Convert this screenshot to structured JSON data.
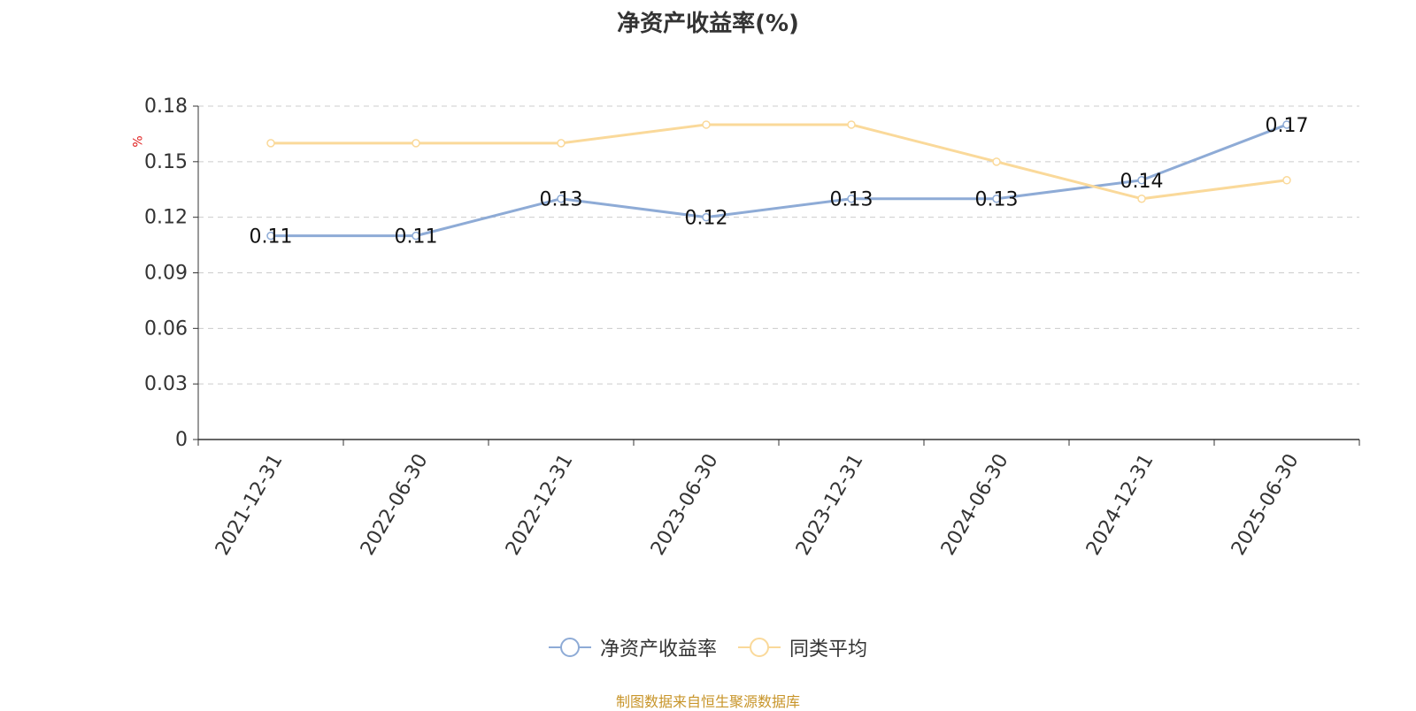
{
  "chart_data": {
    "type": "line",
    "title": "净资产收益率(%)",
    "ylabel": "%",
    "xlabel": "",
    "categories": [
      "2021-12-31",
      "2022-06-30",
      "2022-12-31",
      "2023-06-30",
      "2023-12-31",
      "2024-06-30",
      "2024-12-31",
      "2025-06-30"
    ],
    "ylim": [
      0,
      0.18
    ],
    "yticks": [
      "0",
      "0.03",
      "0.06",
      "0.09",
      "0.12",
      "0.15",
      "0.18"
    ],
    "grid": true,
    "legend_position": "bottom-center",
    "series": [
      {
        "name": "净资产收益率",
        "color": "#8eabd6",
        "values": [
          0.11,
          0.11,
          0.13,
          0.12,
          0.13,
          0.13,
          0.14,
          0.17
        ],
        "labels": [
          "0.11",
          "0.11",
          "0.13",
          "0.12",
          "0.13",
          "0.13",
          "0.14",
          "0.17"
        ]
      },
      {
        "name": "同类平均",
        "color": "#fad99a",
        "values": [
          0.16,
          0.16,
          0.16,
          0.17,
          0.17,
          0.15,
          0.13,
          0.14
        ]
      }
    ]
  },
  "source": "制图数据来自恒生聚源数据库"
}
